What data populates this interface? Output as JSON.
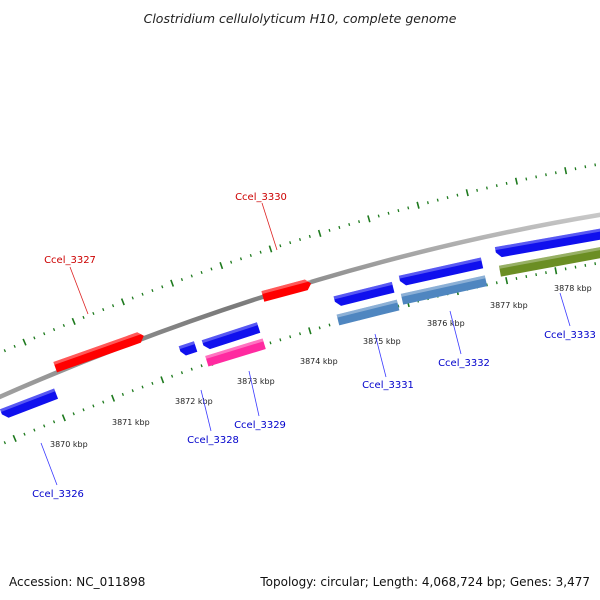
{
  "title": "Clostridium cellulolyticum H10, complete genome",
  "footer": {
    "accession": "Accession: NC_011898",
    "summary": "Topology: circular; Length: 4,068,724 bp; Genes: 3,477"
  },
  "colors": {
    "backbone": "#8c8c8c",
    "tick": "#1e7a1e",
    "gene_red": "#ff0000",
    "gene_blue": "#1010ee",
    "gene_steelblue": "#4f86c0",
    "gene_pink": "#ff2aa0",
    "gene_olive": "#6b8e23",
    "label_red": "#cc0000",
    "label_blue": "#0000cc",
    "leader": "#3a3aff",
    "leader_red": "#dd2222"
  },
  "scale": {
    "ticks": [
      "3870 kbp",
      "3871 kbp",
      "3872 kbp",
      "3873 kbp",
      "3874 kbp",
      "3875 kbp",
      "3876 kbp",
      "3877 kbp",
      "3878 kbp"
    ]
  },
  "genes": [
    {
      "id": "Ccel_3326",
      "color": "gene_blue"
    },
    {
      "id": "Ccel_3327",
      "color": "gene_red"
    },
    {
      "id": "Ccel_3328",
      "color": "gene_blue"
    },
    {
      "id": "Ccel_3329",
      "color": "gene_pink"
    },
    {
      "id": "Ccel_3330",
      "color": "gene_red"
    },
    {
      "id": "Ccel_3331",
      "color": "gene_blue"
    },
    {
      "id": "Ccel_3332",
      "color": "gene_blue"
    },
    {
      "id": "Ccel_3333",
      "color": "gene_blue"
    }
  ]
}
